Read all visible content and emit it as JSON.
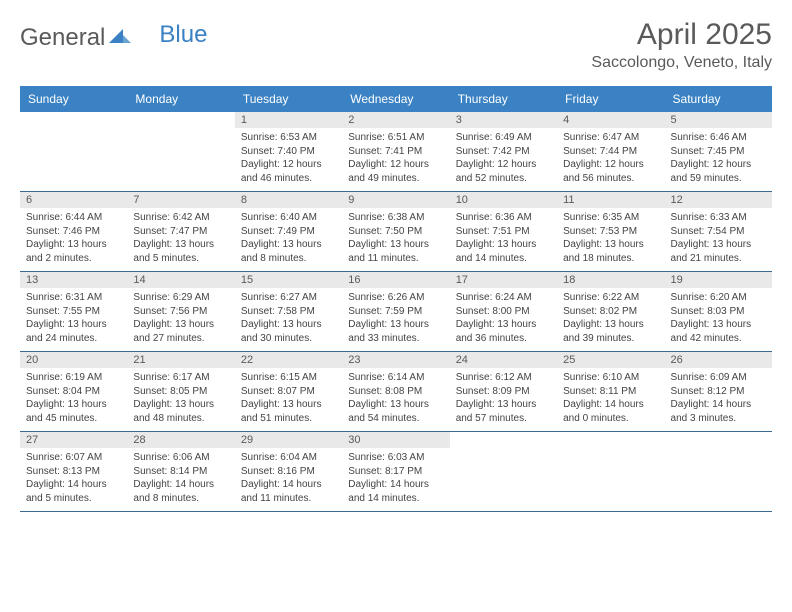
{
  "brand": {
    "part1": "General",
    "part2": "Blue"
  },
  "title": "April 2025",
  "location": "Saccolongo, Veneto, Italy",
  "header_bg": "#3b82c4",
  "header_fg": "#ffffff",
  "daynum_bg": "#e9e9e9",
  "rule_color": "#3b6a94",
  "text_color": "#5a5a5a",
  "body_text_color": "#444444",
  "background_color": "#ffffff",
  "weekdays": [
    "Sunday",
    "Monday",
    "Tuesday",
    "Wednesday",
    "Thursday",
    "Friday",
    "Saturday"
  ],
  "weeks": [
    [
      {
        "empty": true
      },
      {
        "empty": true
      },
      {
        "n": "1",
        "sunrise": "6:53 AM",
        "sunset": "7:40 PM",
        "daylight": "12 hours and 46 minutes."
      },
      {
        "n": "2",
        "sunrise": "6:51 AM",
        "sunset": "7:41 PM",
        "daylight": "12 hours and 49 minutes."
      },
      {
        "n": "3",
        "sunrise": "6:49 AM",
        "sunset": "7:42 PM",
        "daylight": "12 hours and 52 minutes."
      },
      {
        "n": "4",
        "sunrise": "6:47 AM",
        "sunset": "7:44 PM",
        "daylight": "12 hours and 56 minutes."
      },
      {
        "n": "5",
        "sunrise": "6:46 AM",
        "sunset": "7:45 PM",
        "daylight": "12 hours and 59 minutes."
      }
    ],
    [
      {
        "n": "6",
        "sunrise": "6:44 AM",
        "sunset": "7:46 PM",
        "daylight": "13 hours and 2 minutes."
      },
      {
        "n": "7",
        "sunrise": "6:42 AM",
        "sunset": "7:47 PM",
        "daylight": "13 hours and 5 minutes."
      },
      {
        "n": "8",
        "sunrise": "6:40 AM",
        "sunset": "7:49 PM",
        "daylight": "13 hours and 8 minutes."
      },
      {
        "n": "9",
        "sunrise": "6:38 AM",
        "sunset": "7:50 PM",
        "daylight": "13 hours and 11 minutes."
      },
      {
        "n": "10",
        "sunrise": "6:36 AM",
        "sunset": "7:51 PM",
        "daylight": "13 hours and 14 minutes."
      },
      {
        "n": "11",
        "sunrise": "6:35 AM",
        "sunset": "7:53 PM",
        "daylight": "13 hours and 18 minutes."
      },
      {
        "n": "12",
        "sunrise": "6:33 AM",
        "sunset": "7:54 PM",
        "daylight": "13 hours and 21 minutes."
      }
    ],
    [
      {
        "n": "13",
        "sunrise": "6:31 AM",
        "sunset": "7:55 PM",
        "daylight": "13 hours and 24 minutes."
      },
      {
        "n": "14",
        "sunrise": "6:29 AM",
        "sunset": "7:56 PM",
        "daylight": "13 hours and 27 minutes."
      },
      {
        "n": "15",
        "sunrise": "6:27 AM",
        "sunset": "7:58 PM",
        "daylight": "13 hours and 30 minutes."
      },
      {
        "n": "16",
        "sunrise": "6:26 AM",
        "sunset": "7:59 PM",
        "daylight": "13 hours and 33 minutes."
      },
      {
        "n": "17",
        "sunrise": "6:24 AM",
        "sunset": "8:00 PM",
        "daylight": "13 hours and 36 minutes."
      },
      {
        "n": "18",
        "sunrise": "6:22 AM",
        "sunset": "8:02 PM",
        "daylight": "13 hours and 39 minutes."
      },
      {
        "n": "19",
        "sunrise": "6:20 AM",
        "sunset": "8:03 PM",
        "daylight": "13 hours and 42 minutes."
      }
    ],
    [
      {
        "n": "20",
        "sunrise": "6:19 AM",
        "sunset": "8:04 PM",
        "daylight": "13 hours and 45 minutes."
      },
      {
        "n": "21",
        "sunrise": "6:17 AM",
        "sunset": "8:05 PM",
        "daylight": "13 hours and 48 minutes."
      },
      {
        "n": "22",
        "sunrise": "6:15 AM",
        "sunset": "8:07 PM",
        "daylight": "13 hours and 51 minutes."
      },
      {
        "n": "23",
        "sunrise": "6:14 AM",
        "sunset": "8:08 PM",
        "daylight": "13 hours and 54 minutes."
      },
      {
        "n": "24",
        "sunrise": "6:12 AM",
        "sunset": "8:09 PM",
        "daylight": "13 hours and 57 minutes."
      },
      {
        "n": "25",
        "sunrise": "6:10 AM",
        "sunset": "8:11 PM",
        "daylight": "14 hours and 0 minutes."
      },
      {
        "n": "26",
        "sunrise": "6:09 AM",
        "sunset": "8:12 PM",
        "daylight": "14 hours and 3 minutes."
      }
    ],
    [
      {
        "n": "27",
        "sunrise": "6:07 AM",
        "sunset": "8:13 PM",
        "daylight": "14 hours and 5 minutes."
      },
      {
        "n": "28",
        "sunrise": "6:06 AM",
        "sunset": "8:14 PM",
        "daylight": "14 hours and 8 minutes."
      },
      {
        "n": "29",
        "sunrise": "6:04 AM",
        "sunset": "8:16 PM",
        "daylight": "14 hours and 11 minutes."
      },
      {
        "n": "30",
        "sunrise": "6:03 AM",
        "sunset": "8:17 PM",
        "daylight": "14 hours and 14 minutes."
      },
      {
        "empty": true,
        "trailing": true
      },
      {
        "empty": true,
        "trailing": true
      },
      {
        "empty": true,
        "trailing": true
      }
    ]
  ],
  "labels": {
    "sunrise": "Sunrise:",
    "sunset": "Sunset:",
    "daylight": "Daylight:"
  }
}
